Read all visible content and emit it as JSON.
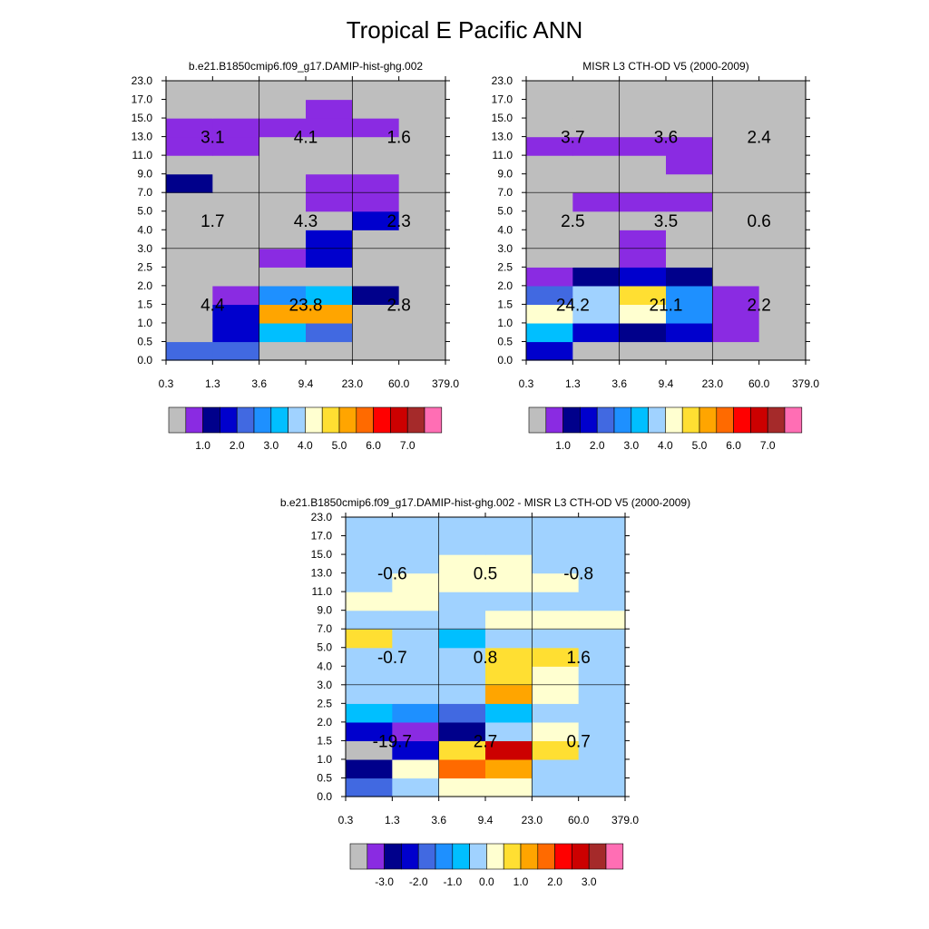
{
  "figure_title": "Tropical E Pacific ANN",
  "palette": {
    "abs": [
      "#bebebe",
      "#8a2be2",
      "#00008b",
      "#0000cd",
      "#4169e1",
      "#1e90ff",
      "#00bfff",
      "#a0d2ff",
      "#ffffd0",
      "#ffdf32",
      "#ffa500",
      "#ff6a00",
      "#ff0000",
      "#cc0000",
      "#a52a2a",
      "#ff6eb4"
    ],
    "diff": [
      "#bebebe",
      "#8a2be2",
      "#00008b",
      "#0000cd",
      "#4169e1",
      "#1e90ff",
      "#00bfff",
      "#a0d2ff",
      "#ffffd0",
      "#ffdf32",
      "#ffa500",
      "#ff6a00",
      "#ff0000",
      "#cc0000",
      "#a52a2a",
      "#ff6eb4"
    ]
  },
  "chart_data": [
    {
      "id": "model",
      "type": "heatmap",
      "title": "b.e21.B1850cmip6.f09_g17.DAMIP-hist-ghg.002",
      "xlabel": "",
      "ylabel": "",
      "x_ticks": [
        "0.3",
        "1.3",
        "3.6",
        "9.4",
        "23.0",
        "60.0",
        "379.0"
      ],
      "y_ticks": [
        "0.0",
        "0.5",
        "1.0",
        "1.5",
        "2.0",
        "2.5",
        "3.0",
        "4.0",
        "5.0",
        "7.0",
        "9.0",
        "11.0",
        "13.0",
        "15.0",
        "17.0",
        "23.0"
      ],
      "colorbar_labels": [
        "1.0",
        "2.0",
        "3.0",
        "4.0",
        "5.0",
        "6.0",
        "7.0"
      ],
      "grid_rows": [
        [
          4,
          4,
          0,
          0,
          0,
          0
        ],
        [
          0,
          3,
          6,
          4,
          0,
          0
        ],
        [
          0,
          3,
          10,
          10,
          0,
          0
        ],
        [
          0,
          1,
          5,
          6,
          2,
          0
        ],
        [
          0,
          0,
          0,
          0,
          0,
          0
        ],
        [
          0,
          0,
          1,
          3,
          0,
          0
        ],
        [
          0,
          0,
          0,
          3,
          0,
          0
        ],
        [
          0,
          0,
          0,
          0,
          3,
          0
        ],
        [
          0,
          0,
          0,
          1,
          1,
          0
        ],
        [
          2,
          0,
          0,
          1,
          1,
          0
        ],
        [
          0,
          0,
          0,
          0,
          0,
          0
        ],
        [
          1,
          1,
          0,
          0,
          0,
          0
        ],
        [
          1,
          1,
          1,
          1,
          1,
          0
        ],
        [
          0,
          0,
          0,
          1,
          0,
          0
        ],
        [
          0,
          0,
          0,
          0,
          0,
          0
        ]
      ],
      "annotations": [
        {
          "label": "3.1",
          "col": 0.5,
          "row": 12
        },
        {
          "label": "4.1",
          "col": 1.5,
          "row": 12
        },
        {
          "label": "1.6",
          "col": 2.5,
          "row": 12
        },
        {
          "label": "1.7",
          "col": 0.5,
          "row": 7.5
        },
        {
          "label": "4.3",
          "col": 1.5,
          "row": 7.5
        },
        {
          "label": "2.3",
          "col": 2.5,
          "row": 7.5
        },
        {
          "label": "4.4",
          "col": 0.5,
          "row": 3
        },
        {
          "label": "23.8",
          "col": 1.5,
          "row": 3
        },
        {
          "label": "2.8",
          "col": 2.5,
          "row": 3
        }
      ]
    },
    {
      "id": "obs",
      "type": "heatmap",
      "title": "MISR L3 CTH-OD V5 (2000-2009)",
      "xlabel": "",
      "ylabel": "",
      "x_ticks": [
        "0.3",
        "1.3",
        "3.6",
        "9.4",
        "23.0",
        "60.0",
        "379.0"
      ],
      "y_ticks": [
        "0.0",
        "0.5",
        "1.0",
        "1.5",
        "2.0",
        "2.5",
        "3.0",
        "4.0",
        "5.0",
        "7.0",
        "9.0",
        "11.0",
        "13.0",
        "15.0",
        "17.0",
        "23.0"
      ],
      "colorbar_labels": [
        "1.0",
        "2.0",
        "3.0",
        "4.0",
        "5.0",
        "6.0",
        "7.0"
      ],
      "grid_rows": [
        [
          3,
          0,
          0,
          0,
          0,
          0
        ],
        [
          6,
          3,
          2,
          3,
          1,
          0
        ],
        [
          8,
          7,
          8,
          5,
          1,
          0
        ],
        [
          4,
          7,
          9,
          5,
          1,
          0
        ],
        [
          1,
          2,
          3,
          2,
          0,
          0
        ],
        [
          0,
          0,
          1,
          0,
          0,
          0
        ],
        [
          0,
          0,
          1,
          0,
          0,
          0
        ],
        [
          0,
          0,
          0,
          0,
          0,
          0
        ],
        [
          0,
          1,
          1,
          1,
          0,
          0
        ],
        [
          0,
          0,
          0,
          0,
          0,
          0
        ],
        [
          0,
          0,
          0,
          1,
          0,
          0
        ],
        [
          1,
          1,
          1,
          1,
          0,
          0
        ],
        [
          0,
          0,
          0,
          0,
          0,
          0
        ],
        [
          0,
          0,
          0,
          0,
          0,
          0
        ],
        [
          0,
          0,
          0,
          0,
          0,
          0
        ]
      ],
      "annotations": [
        {
          "label": "3.7",
          "col": 0.5,
          "row": 12
        },
        {
          "label": "3.6",
          "col": 1.5,
          "row": 12
        },
        {
          "label": "2.4",
          "col": 2.5,
          "row": 12
        },
        {
          "label": "2.5",
          "col": 0.5,
          "row": 7.5
        },
        {
          "label": "3.5",
          "col": 1.5,
          "row": 7.5
        },
        {
          "label": "0.6",
          "col": 2.5,
          "row": 7.5
        },
        {
          "label": "24.2",
          "col": 0.5,
          "row": 3
        },
        {
          "label": "21.1",
          "col": 1.5,
          "row": 3
        },
        {
          "label": "2.2",
          "col": 2.5,
          "row": 3
        }
      ]
    },
    {
      "id": "diff",
      "type": "heatmap",
      "title": "b.e21.B1850cmip6.f09_g17.DAMIP-hist-ghg.002 - MISR L3 CTH-OD V5 (2000-2009)",
      "xlabel": "",
      "ylabel": "",
      "x_ticks": [
        "0.3",
        "1.3",
        "3.6",
        "9.4",
        "23.0",
        "60.0",
        "379.0"
      ],
      "y_ticks": [
        "0.0",
        "0.5",
        "1.0",
        "1.5",
        "2.0",
        "2.5",
        "3.0",
        "4.0",
        "5.0",
        "7.0",
        "9.0",
        "11.0",
        "13.0",
        "15.0",
        "17.0",
        "23.0"
      ],
      "colorbar_labels": [
        "-3.0",
        "-2.0",
        "-1.0",
        "0.0",
        "1.0",
        "2.0",
        "3.0"
      ],
      "grid_rows": [
        [
          4,
          7,
          8,
          8,
          7,
          7
        ],
        [
          2,
          8,
          11,
          10,
          7,
          7
        ],
        [
          0,
          3,
          9,
          13,
          9,
          7
        ],
        [
          3,
          1,
          2,
          7,
          8,
          7
        ],
        [
          6,
          5,
          4,
          6,
          7,
          7
        ],
        [
          7,
          7,
          7,
          10,
          8,
          7
        ],
        [
          7,
          7,
          7,
          9,
          8,
          7
        ],
        [
          7,
          7,
          7,
          9,
          9,
          7
        ],
        [
          9,
          7,
          6,
          7,
          7,
          7
        ],
        [
          7,
          7,
          7,
          8,
          8,
          8
        ],
        [
          8,
          8,
          7,
          7,
          7,
          7
        ],
        [
          7,
          8,
          8,
          8,
          8,
          7
        ],
        [
          7,
          7,
          8,
          8,
          7,
          7
        ],
        [
          7,
          7,
          7,
          7,
          7,
          7
        ],
        [
          7,
          7,
          7,
          7,
          7,
          7
        ]
      ],
      "annotations": [
        {
          "label": "-0.6",
          "col": 0.5,
          "row": 12
        },
        {
          "label": "0.5",
          "col": 1.5,
          "row": 12
        },
        {
          "label": "-0.8",
          "col": 2.5,
          "row": 12
        },
        {
          "label": "-0.7",
          "col": 0.5,
          "row": 7.5
        },
        {
          "label": "0.8",
          "col": 1.5,
          "row": 7.5
        },
        {
          "label": "1.6",
          "col": 2.5,
          "row": 7.5
        },
        {
          "label": "-19.7",
          "col": 0.5,
          "row": 3
        },
        {
          "label": "2.7",
          "col": 1.5,
          "row": 3
        },
        {
          "label": "0.7",
          "col": 2.5,
          "row": 3
        }
      ]
    }
  ]
}
